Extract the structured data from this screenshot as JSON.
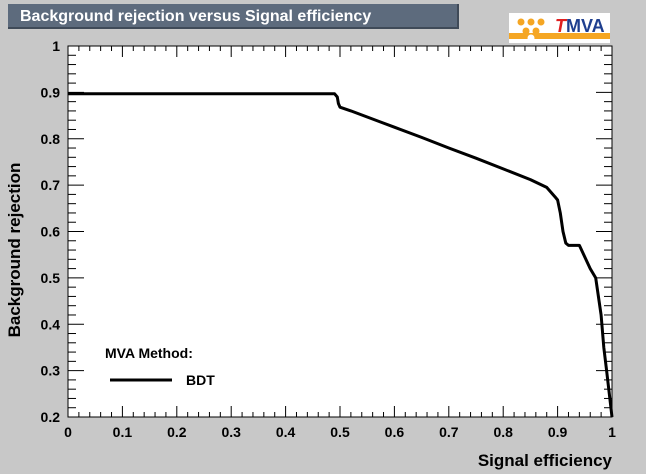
{
  "title": "Background rejection versus Signal efficiency",
  "logo": {
    "t": "T",
    "rest": "MVA"
  },
  "chart_data": {
    "type": "line",
    "title": "Background rejection versus Signal efficiency",
    "xlabel": "Signal efficiency",
    "ylabel": "Background rejection",
    "xlim": [
      0,
      1
    ],
    "ylim": [
      0.2,
      1
    ],
    "xticks": [
      "0",
      "0.1",
      "0.2",
      "0.3",
      "0.4",
      "0.5",
      "0.6",
      "0.7",
      "0.8",
      "0.9",
      "1"
    ],
    "yticks": [
      "0.2",
      "0.3",
      "0.4",
      "0.5",
      "0.6",
      "0.7",
      "0.8",
      "0.9",
      "1"
    ],
    "grid": false,
    "legend": {
      "title": "MVA Method:",
      "placement": "bottom-left"
    },
    "series": [
      {
        "name": "BDT",
        "color": "#000000",
        "x": [
          0.0,
          0.49,
          0.495,
          0.497,
          0.5,
          0.52,
          0.55,
          0.6,
          0.65,
          0.7,
          0.75,
          0.8,
          0.85,
          0.88,
          0.895,
          0.9,
          0.905,
          0.91,
          0.915,
          0.92,
          0.93,
          0.94,
          0.95,
          0.96,
          0.97,
          0.98,
          0.985,
          0.99,
          0.995,
          1.0
        ],
        "y": [
          0.897,
          0.897,
          0.89,
          0.876,
          0.868,
          0.86,
          0.847,
          0.825,
          0.803,
          0.78,
          0.758,
          0.735,
          0.712,
          0.695,
          0.675,
          0.668,
          0.64,
          0.6,
          0.575,
          0.57,
          0.57,
          0.57,
          0.545,
          0.52,
          0.5,
          0.42,
          0.35,
          0.3,
          0.25,
          0.2
        ]
      }
    ]
  }
}
